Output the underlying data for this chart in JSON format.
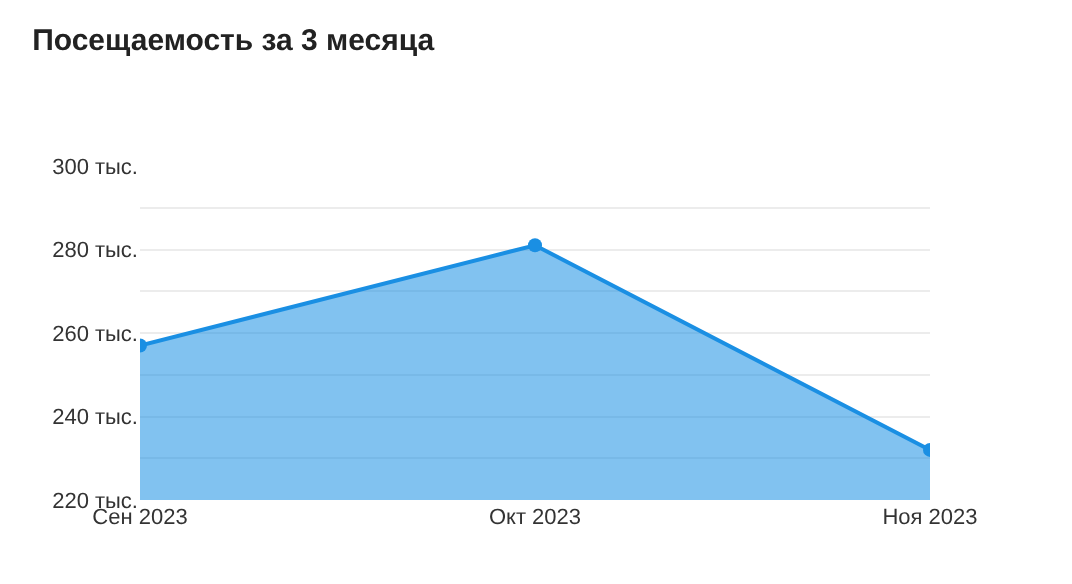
{
  "chart_data": {
    "type": "area",
    "title": "Посещаемость за 3 месяца",
    "categories": [
      "Сен 2023",
      "Окт 2023",
      "Ноя 2023"
    ],
    "series": [
      {
        "color": "#1a8fe3",
        "values": [
          257,
          281,
          232
        ]
      }
    ],
    "ylim": [
      220,
      300
    ],
    "yticks": [
      {
        "value": 220,
        "label": "220 тыс."
      },
      {
        "value": 230,
        "label": null
      },
      {
        "value": 240,
        "label": "240 тыс."
      },
      {
        "value": 250,
        "label": null
      },
      {
        "value": 260,
        "label": "260 тыс."
      },
      {
        "value": 270,
        "label": null
      },
      {
        "value": 280,
        "label": "280 тыс."
      },
      {
        "value": 290,
        "label": null
      },
      {
        "value": 300,
        "label": "300 тыс."
      }
    ],
    "grid": "y",
    "marker": "circle"
  }
}
